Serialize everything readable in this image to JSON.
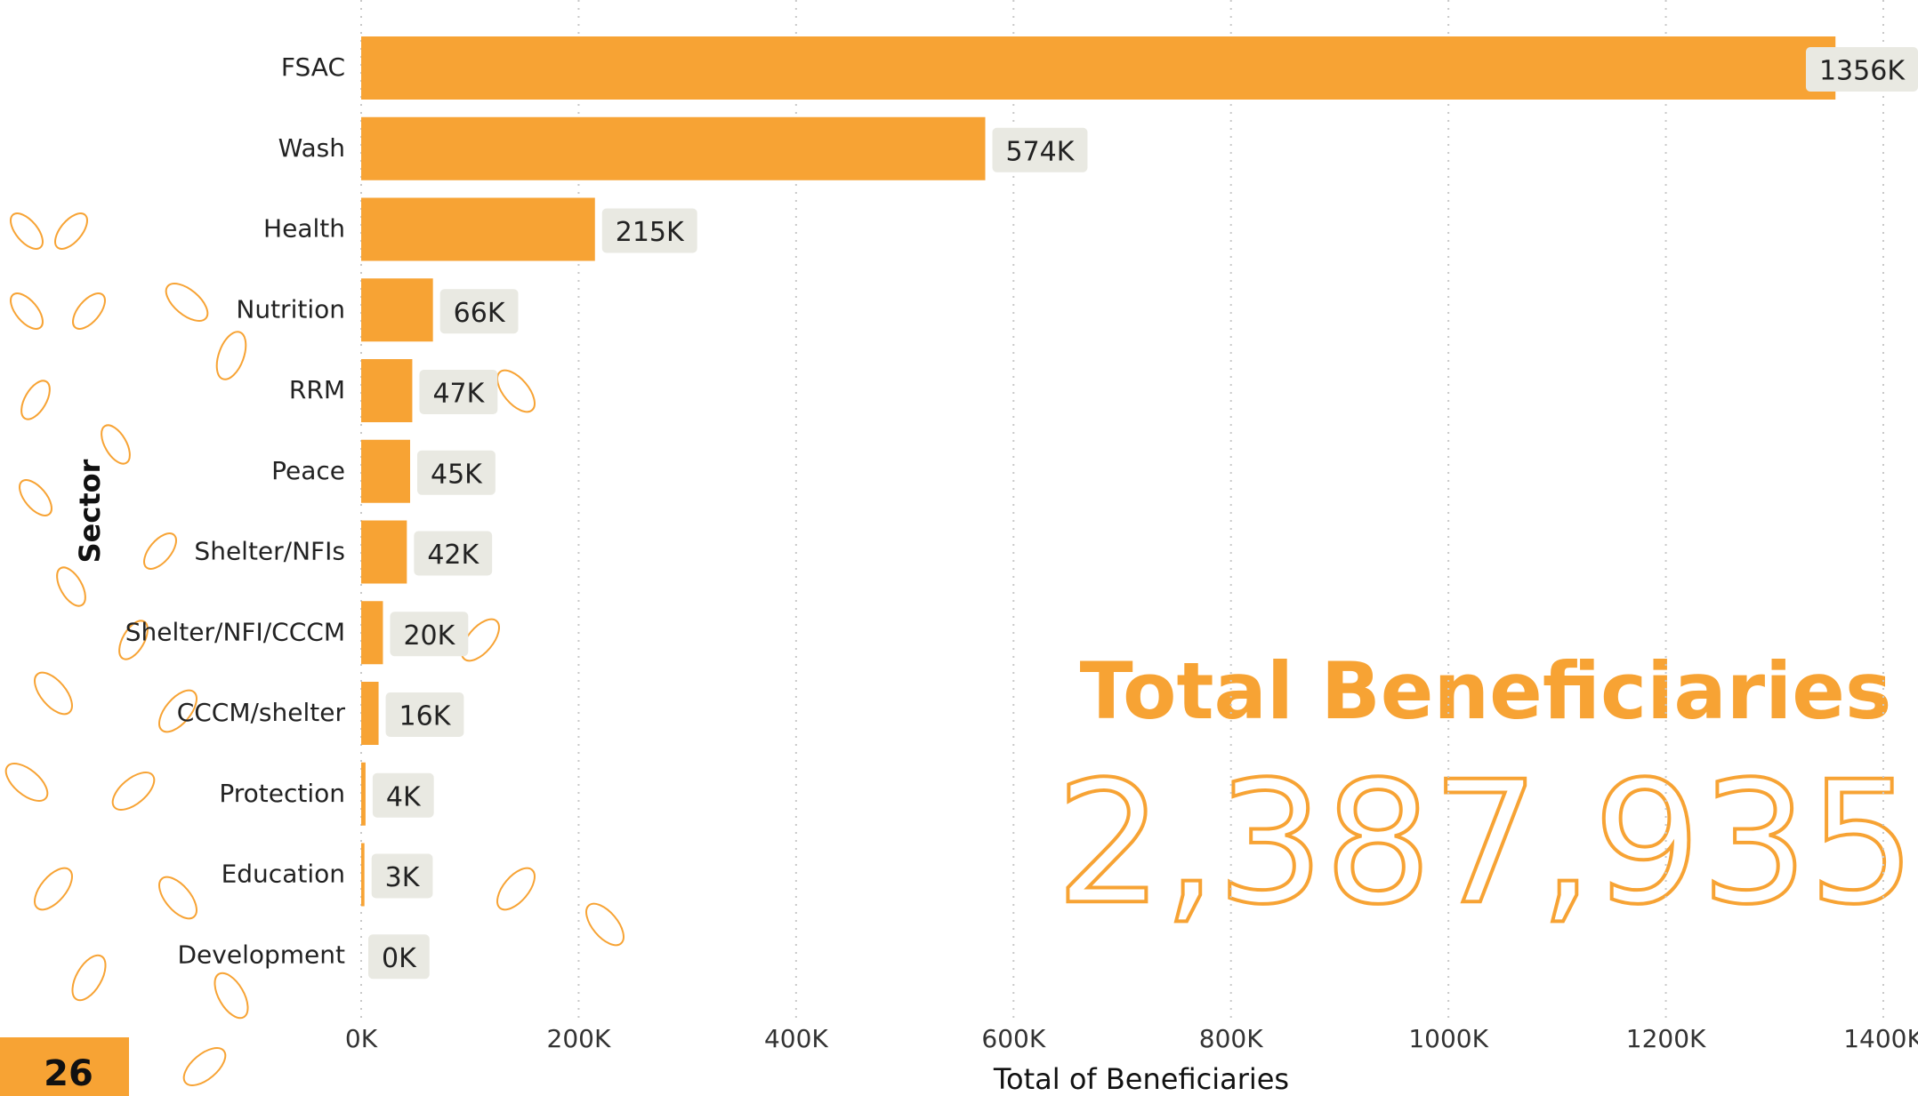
{
  "chart_data": {
    "type": "hbar",
    "x_label": "Total of Beneficiaries",
    "y_label": "Sector",
    "categories": [
      "FSAC",
      "Wash",
      "Health",
      "Nutrition",
      "RRM",
      "Peace",
      "Shelter/NFIs",
      "Shelter/NFI/CCCM",
      "CCCM/shelter",
      "Protection",
      "Education",
      "Development"
    ],
    "values": [
      1356000,
      574000,
      215000,
      66000,
      47000,
      45000,
      42000,
      20000,
      16000,
      4000,
      3000,
      0
    ],
    "value_labels": [
      "1356K",
      "574K",
      "215K",
      "66K",
      "47K",
      "45K",
      "42K",
      "20K",
      "16K",
      "4K",
      "3K",
      "0K"
    ],
    "color": "#f7a334",
    "xlim": [
      0,
      1400000
    ],
    "xticks": [
      {
        "value": 0,
        "label": "0K"
      },
      {
        "value": 200000,
        "label": "200K"
      },
      {
        "value": 400000,
        "label": "400K"
      },
      {
        "value": 600000,
        "label": "600K"
      },
      {
        "value": 800000,
        "label": "800K"
      },
      {
        "value": 1000000,
        "label": "1000K"
      },
      {
        "value": 1200000,
        "label": "1200K"
      },
      {
        "value": 1400000,
        "label": "1400K"
      }
    ],
    "grid": true
  },
  "kpi": {
    "title": "Total Beneficiaries",
    "value": "2,387,935"
  },
  "page_number": "26"
}
